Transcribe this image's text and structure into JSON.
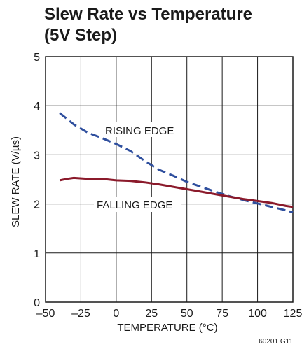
{
  "chart_data": {
    "type": "line",
    "title": "Slew Rate vs Temperature",
    "subtitle": "(5V Step)",
    "xlabel": "TEMPERATURE (°C)",
    "ylabel": "SLEW RATE (V/µs)",
    "xlim": [
      -50,
      125
    ],
    "ylim": [
      0,
      5
    ],
    "x_ticks": [
      "–50",
      "–25",
      "0",
      "25",
      "50",
      "75",
      "100",
      "125"
    ],
    "y_ticks": [
      "0",
      "1",
      "2",
      "3",
      "4",
      "5"
    ],
    "grid": true,
    "figure_code": "60201 G11",
    "series": [
      {
        "name": "RISING EDGE",
        "style": "dashed",
        "color": "#2f4f9e",
        "x": [
          -40,
          -30,
          -20,
          -10,
          0,
          10,
          20,
          30,
          40,
          50,
          60,
          70,
          80,
          90,
          100,
          110,
          120,
          125
        ],
        "y": [
          3.85,
          3.62,
          3.45,
          3.34,
          3.22,
          3.08,
          2.88,
          2.7,
          2.58,
          2.45,
          2.35,
          2.25,
          2.16,
          2.08,
          2.01,
          1.94,
          1.87,
          1.83
        ]
      },
      {
        "name": "FALLING EDGE",
        "style": "solid",
        "color": "#8b1a2b",
        "x": [
          -40,
          -35,
          -30,
          -20,
          -10,
          0,
          10,
          20,
          30,
          40,
          50,
          60,
          70,
          80,
          90,
          100,
          110,
          120,
          125
        ],
        "y": [
          2.48,
          2.51,
          2.53,
          2.51,
          2.51,
          2.48,
          2.47,
          2.44,
          2.4,
          2.35,
          2.3,
          2.25,
          2.2,
          2.15,
          2.1,
          2.06,
          2.02,
          1.96,
          1.94
        ]
      }
    ]
  }
}
